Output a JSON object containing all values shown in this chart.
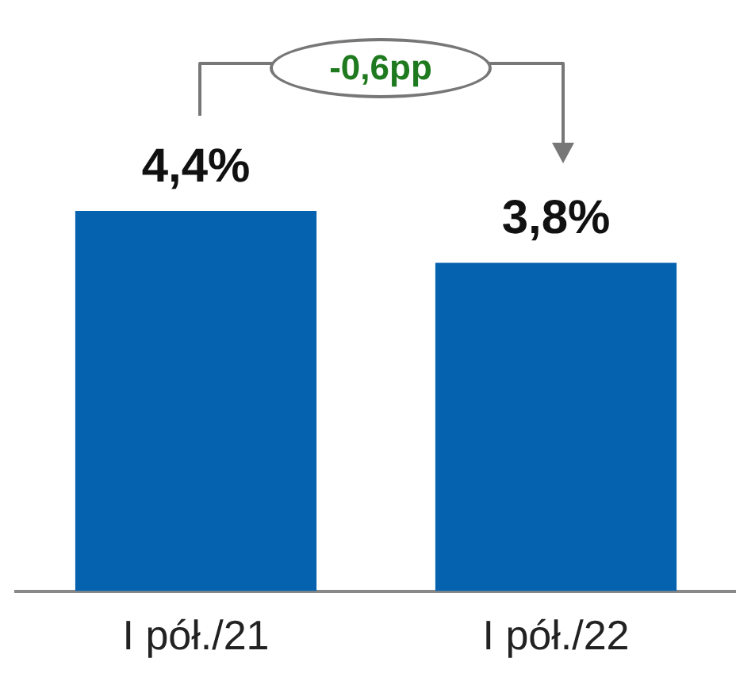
{
  "chart_data": {
    "type": "bar",
    "categories": [
      "I pół./21",
      "I pół./22"
    ],
    "values": [
      4.4,
      3.8
    ],
    "color": "#0562af",
    "value_labels": [
      "4,4%",
      "3,8%"
    ],
    "annotations": [
      "-0,6pp"
    ],
    "legend": false,
    "grid": false
  }
}
